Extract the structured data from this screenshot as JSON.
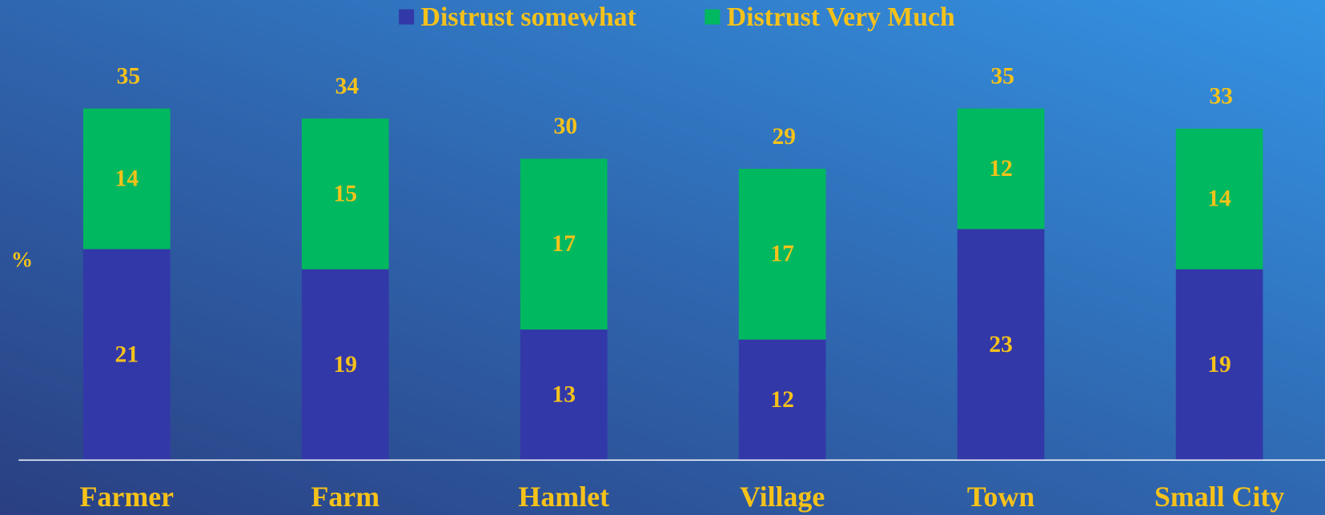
{
  "chart_data": {
    "type": "bar",
    "stacked": true,
    "ylabel": "%",
    "categories": [
      "Farmer",
      "Farm",
      "Hamlet",
      "Village",
      "Town",
      "Small City"
    ],
    "series": [
      {
        "name": "Distrust somewhat",
        "color": "#3338a8",
        "values": [
          21,
          19,
          13,
          12,
          23,
          19
        ]
      },
      {
        "name": "Distrust Very Much",
        "color": "#00b85f",
        "values": [
          14,
          15,
          17,
          17,
          12,
          14
        ]
      }
    ],
    "totals": [
      35,
      34,
      30,
      29,
      35,
      33
    ],
    "ylim": [
      0,
      40
    ],
    "legend": "top"
  }
}
